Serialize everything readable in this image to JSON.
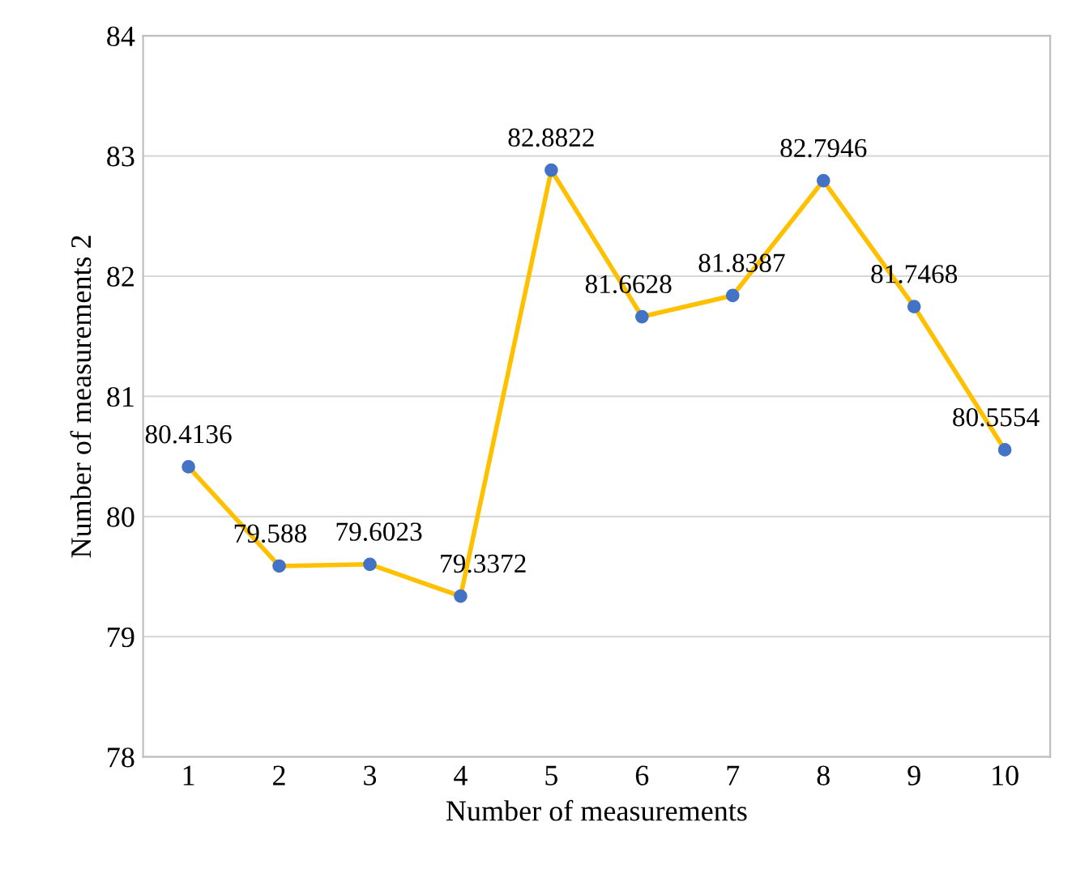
{
  "chart_data": {
    "type": "line",
    "xlabel": "Number of measurements",
    "ylabel": "Number of measurements 2",
    "categories": [
      "1",
      "2",
      "3",
      "4",
      "5",
      "6",
      "7",
      "8",
      "9",
      "10"
    ],
    "series": [
      {
        "color": "#ffc000",
        "values": [
          80.4136,
          79.588,
          79.6023,
          79.3372,
          82.8822,
          81.6628,
          81.8387,
          82.7946,
          81.7468,
          80.5554
        ]
      }
    ],
    "ylim": [
      78,
      84
    ],
    "yticks": [
      78,
      79,
      80,
      81,
      82,
      83,
      84
    ],
    "grid": "y",
    "marker": "circle",
    "line_style": "solid",
    "data_labels": true,
    "legend": false
  }
}
